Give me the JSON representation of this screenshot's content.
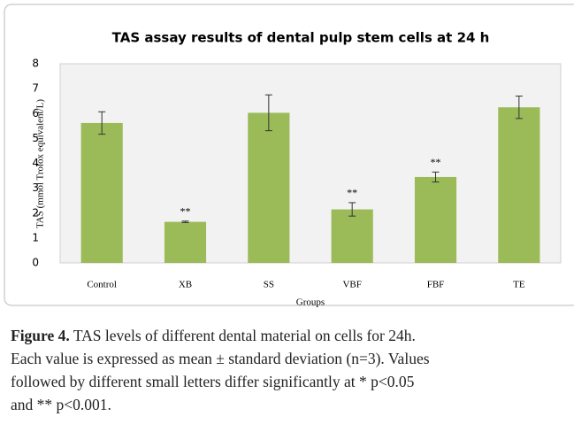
{
  "chart_data": {
    "type": "bar",
    "title": "TAS assay results of dental pulp stem cells at 24 h",
    "y_label": "TAS  (mmol Trolox equivalent/L)",
    "x_label": "Groups",
    "categories": [
      "Control",
      "XB",
      "SS",
      "VBF",
      "FBF",
      "TE"
    ],
    "values": [
      5.62,
      1.65,
      6.03,
      2.15,
      3.45,
      6.25
    ],
    "errors": [
      0.45,
      0.03,
      0.72,
      0.27,
      0.2,
      0.45
    ],
    "color": "#9bbb59",
    "ylim": [
      0,
      8
    ],
    "yticks": [
      0,
      1,
      2,
      3,
      4,
      5,
      6,
      7,
      8
    ],
    "grid": false,
    "annotations": [
      {
        "x": "XB",
        "text": "**"
      },
      {
        "x": "VBF",
        "text": "**"
      },
      {
        "x": "FBF",
        "text": "**"
      }
    ]
  },
  "caption": {
    "label": "Figure 4.",
    "lines": [
      "TAS levels of different dental material on cells for 24h.",
      "Each value is expressed as mean ± standard deviation (n=3). Values",
      "followed by different small letters differ significantly at * p<0.05",
      "and ** p<0.001."
    ]
  }
}
